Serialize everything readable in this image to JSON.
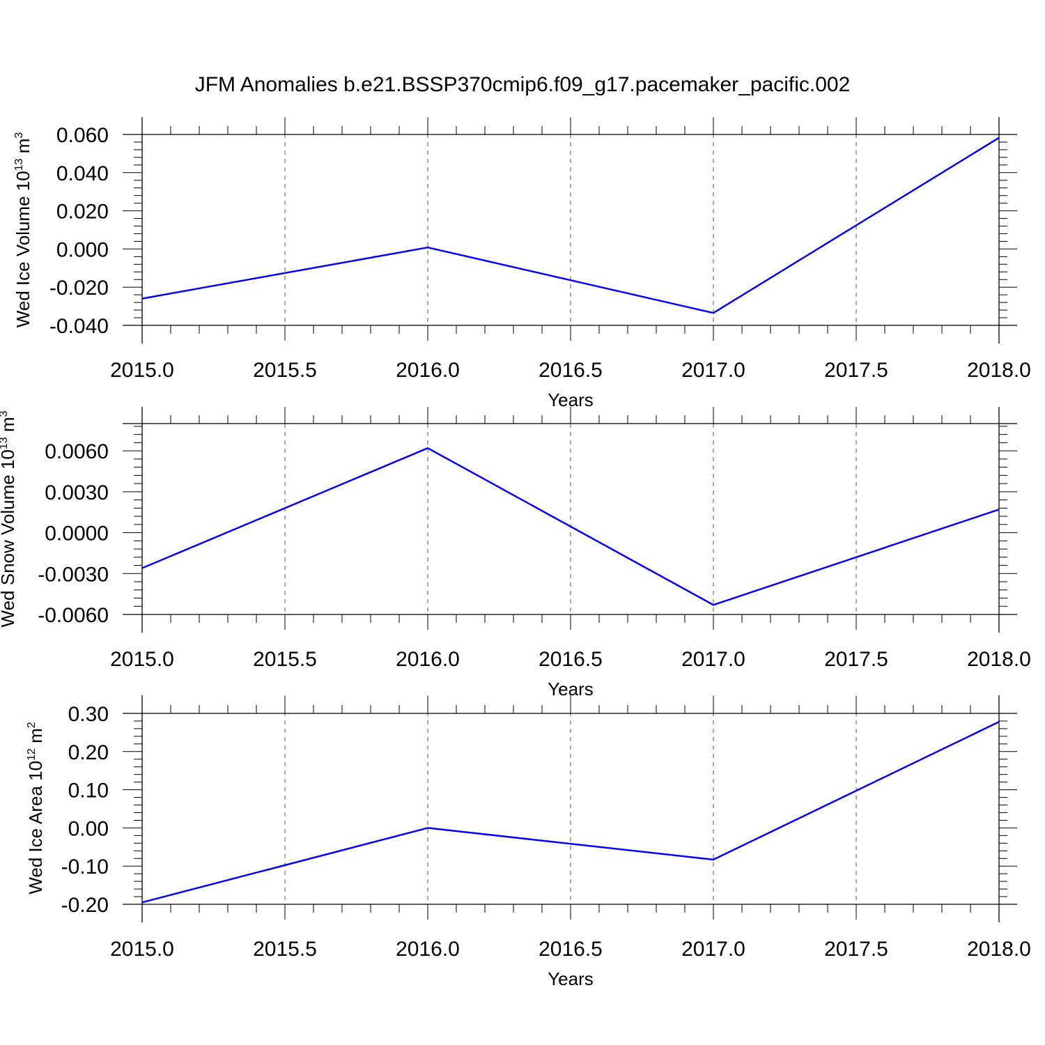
{
  "title": "JFM Anomalies b.e21.BSSP370cmip6.f09_g17.pacemaker_pacific.002",
  "chart_data": [
    {
      "type": "line",
      "ylabel": "Wed Ice Volume 10",
      "ylabel_exponent": "13",
      "ylabel_unit": "m",
      "ylabel_unit_exponent": "3",
      "xlabel": "Years",
      "xlim": [
        2015.0,
        2018.0
      ],
      "ylim": [
        -0.04,
        0.06
      ],
      "xticks": [
        2015.0,
        2015.5,
        2016.0,
        2016.5,
        2017.0,
        2017.5,
        2018.0
      ],
      "xtick_labels": [
        "2015.0",
        "2015.5",
        "2016.0",
        "2016.5",
        "2017.0",
        "2017.5",
        "2018.0"
      ],
      "yticks": [
        -0.04,
        -0.02,
        0.0,
        0.02,
        0.04,
        0.06
      ],
      "ytick_labels": [
        "-0.040",
        "-0.020",
        "0.000",
        "0.020",
        "0.040",
        "0.060"
      ],
      "grid": "vertical dashed",
      "color": "#0000ff",
      "x": [
        2015,
        2016,
        2017,
        2018
      ],
      "y": [
        -0.026,
        0.0008,
        -0.0335,
        0.0583
      ]
    },
    {
      "type": "line",
      "ylabel": "Wed Snow Volume 10",
      "ylabel_exponent": "13",
      "ylabel_unit": "m",
      "ylabel_unit_exponent": "3",
      "xlabel": "Years",
      "xlim": [
        2015.0,
        2018.0
      ],
      "ylim": [
        -0.006,
        0.008
      ],
      "xticks": [
        2015.0,
        2015.5,
        2016.0,
        2016.5,
        2017.0,
        2017.5,
        2018.0
      ],
      "xtick_labels": [
        "2015.0",
        "2015.5",
        "2016.0",
        "2016.5",
        "2017.0",
        "2017.5",
        "2018.0"
      ],
      "yticks": [
        -0.006,
        -0.003,
        0.0,
        0.003,
        0.006
      ],
      "ytick_labels": [
        "-0.0060",
        "-0.0030",
        "0.0000",
        "0.0030",
        "0.0060"
      ],
      "grid": "vertical dashed",
      "color": "#0000ff",
      "x": [
        2015,
        2016,
        2017,
        2018
      ],
      "y": [
        -0.0026,
        0.0062,
        -0.0053,
        0.0017
      ]
    },
    {
      "type": "line",
      "ylabel": "Wed Ice Area 10",
      "ylabel_exponent": "12",
      "ylabel_unit": "m",
      "ylabel_unit_exponent": "2",
      "xlabel": "Years",
      "xlim": [
        2015.0,
        2018.0
      ],
      "ylim": [
        -0.2,
        0.3
      ],
      "xticks": [
        2015.0,
        2015.5,
        2016.0,
        2016.5,
        2017.0,
        2017.5,
        2018.0
      ],
      "xtick_labels": [
        "2015.0",
        "2015.5",
        "2016.0",
        "2016.5",
        "2017.0",
        "2017.5",
        "2018.0"
      ],
      "yticks": [
        -0.2,
        -0.1,
        0.0,
        0.1,
        0.2,
        0.3
      ],
      "ytick_labels": [
        "-0.20",
        "-0.10",
        "0.00",
        "0.10",
        "0.20",
        "0.30"
      ],
      "grid": "vertical dashed",
      "color": "#0000ff",
      "x": [
        2015,
        2016,
        2017,
        2018
      ],
      "y": [
        -0.195,
        0.0,
        -0.083,
        0.278
      ]
    }
  ]
}
